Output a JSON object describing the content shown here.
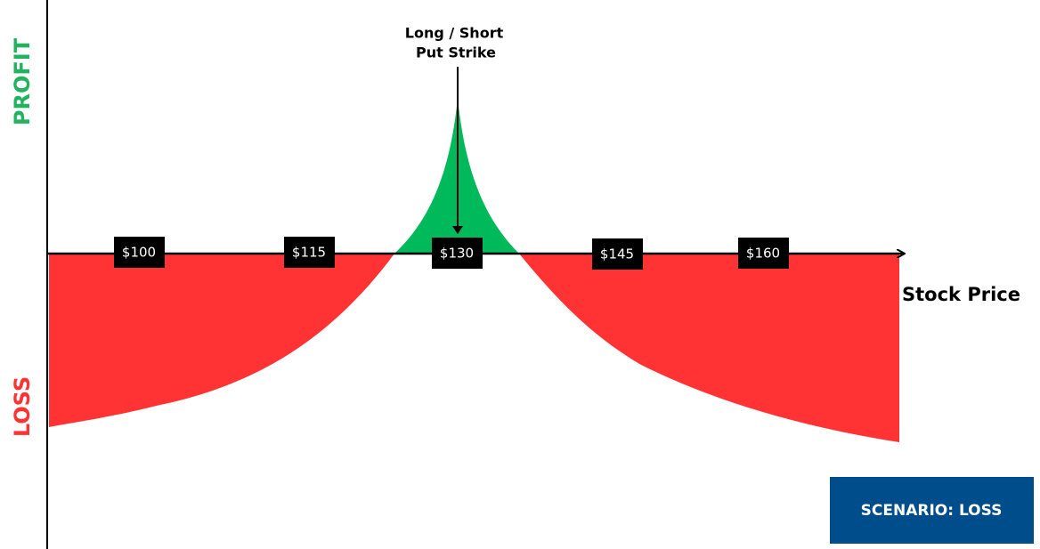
{
  "axes": {
    "profit_label": "PROFIT",
    "loss_label": "LOSS",
    "x_label": "Stock Price"
  },
  "annotation": {
    "lines": [
      "Long / Short",
      "Put Strike"
    ]
  },
  "price_labels": [
    "$100",
    "$115",
    "$130",
    "$145",
    "$160"
  ],
  "scenario": "SCENARIO: LOSS"
}
